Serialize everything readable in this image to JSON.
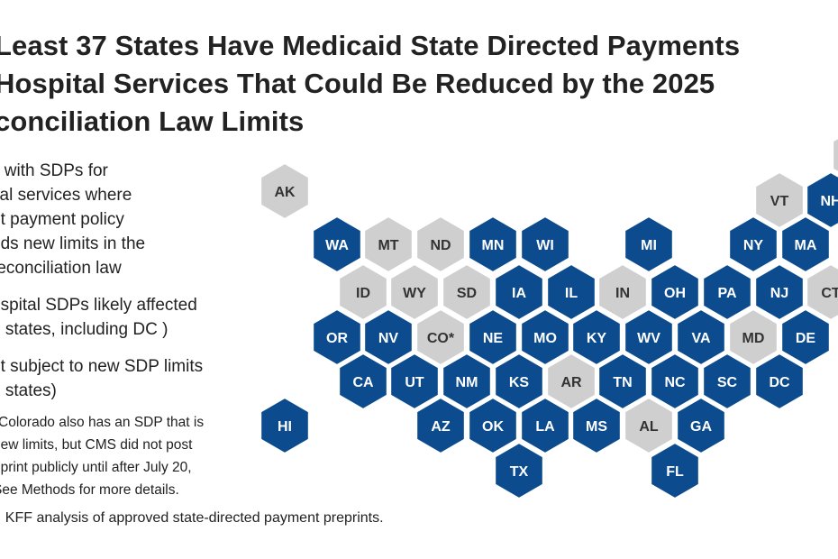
{
  "title_lines": [
    "Least 37 States Have Medicaid State Directed Payments",
    "Hospital Services That Could Be Reduced by the 2025",
    "conciliation Law Limits"
  ],
  "legend": {
    "heading_lines": [
      "s with SDPs for",
      "ital services where",
      "nt payment policy",
      "eds new limits in the",
      "reconciliation law"
    ],
    "affected_lines": [
      "ospital SDPs likely affected",
      "7 states, including DC )"
    ],
    "not_subject_lines": [
      "ot subject to new SDP limits",
      "4 states)"
    ]
  },
  "note_lines": [
    "*Colorado also has an SDP that is",
    "new limits, but CMS did not post",
    "eprint publicly until after July 20,",
    "See Methods for more details."
  ],
  "source": "e: KFF analysis of approved state-directed payment preprints.",
  "colors": {
    "affected": "#0b4b8e",
    "not_subject": "#cfcfcf",
    "affected_text": "#ffffff",
    "not_subject_text": "#333333"
  },
  "states": [
    {
      "abbr": "AK",
      "status": "not_subject"
    },
    {
      "abbr": "WA",
      "status": "affected"
    },
    {
      "abbr": "MT",
      "status": "not_subject"
    },
    {
      "abbr": "ND",
      "status": "not_subject"
    },
    {
      "abbr": "MN",
      "status": "affected"
    },
    {
      "abbr": "WI",
      "status": "affected"
    },
    {
      "abbr": "MI",
      "status": "affected"
    },
    {
      "abbr": "NY",
      "status": "affected"
    },
    {
      "abbr": "MA",
      "status": "affected"
    },
    {
      "abbr": "VT",
      "status": "not_subject"
    },
    {
      "abbr": "NH",
      "status": "affected"
    },
    {
      "abbr": "ID",
      "status": "not_subject"
    },
    {
      "abbr": "WY",
      "status": "not_subject"
    },
    {
      "abbr": "SD",
      "status": "not_subject"
    },
    {
      "abbr": "IA",
      "status": "affected"
    },
    {
      "abbr": "IL",
      "status": "affected"
    },
    {
      "abbr": "IN",
      "status": "not_subject"
    },
    {
      "abbr": "OH",
      "status": "affected"
    },
    {
      "abbr": "PA",
      "status": "affected"
    },
    {
      "abbr": "NJ",
      "status": "affected"
    },
    {
      "abbr": "CT",
      "status": "not_subject"
    },
    {
      "abbr": "OR",
      "status": "affected"
    },
    {
      "abbr": "NV",
      "status": "affected"
    },
    {
      "abbr": "CO*",
      "status": "not_subject"
    },
    {
      "abbr": "NE",
      "status": "affected"
    },
    {
      "abbr": "MO",
      "status": "affected"
    },
    {
      "abbr": "KY",
      "status": "affected"
    },
    {
      "abbr": "WV",
      "status": "affected"
    },
    {
      "abbr": "VA",
      "status": "affected"
    },
    {
      "abbr": "MD",
      "status": "not_subject"
    },
    {
      "abbr": "DE",
      "status": "affected"
    },
    {
      "abbr": "CA",
      "status": "affected"
    },
    {
      "abbr": "UT",
      "status": "affected"
    },
    {
      "abbr": "NM",
      "status": "affected"
    },
    {
      "abbr": "KS",
      "status": "affected"
    },
    {
      "abbr": "AR",
      "status": "not_subject"
    },
    {
      "abbr": "TN",
      "status": "affected"
    },
    {
      "abbr": "NC",
      "status": "affected"
    },
    {
      "abbr": "SC",
      "status": "affected"
    },
    {
      "abbr": "DC",
      "status": "affected"
    },
    {
      "abbr": "HI",
      "status": "affected"
    },
    {
      "abbr": "AZ",
      "status": "affected"
    },
    {
      "abbr": "OK",
      "status": "affected"
    },
    {
      "abbr": "LA",
      "status": "affected"
    },
    {
      "abbr": "MS",
      "status": "affected"
    },
    {
      "abbr": "AL",
      "status": "not_subject"
    },
    {
      "abbr": "GA",
      "status": "affected"
    },
    {
      "abbr": "TX",
      "status": "affected"
    },
    {
      "abbr": "FL",
      "status": "affected"
    }
  ]
}
